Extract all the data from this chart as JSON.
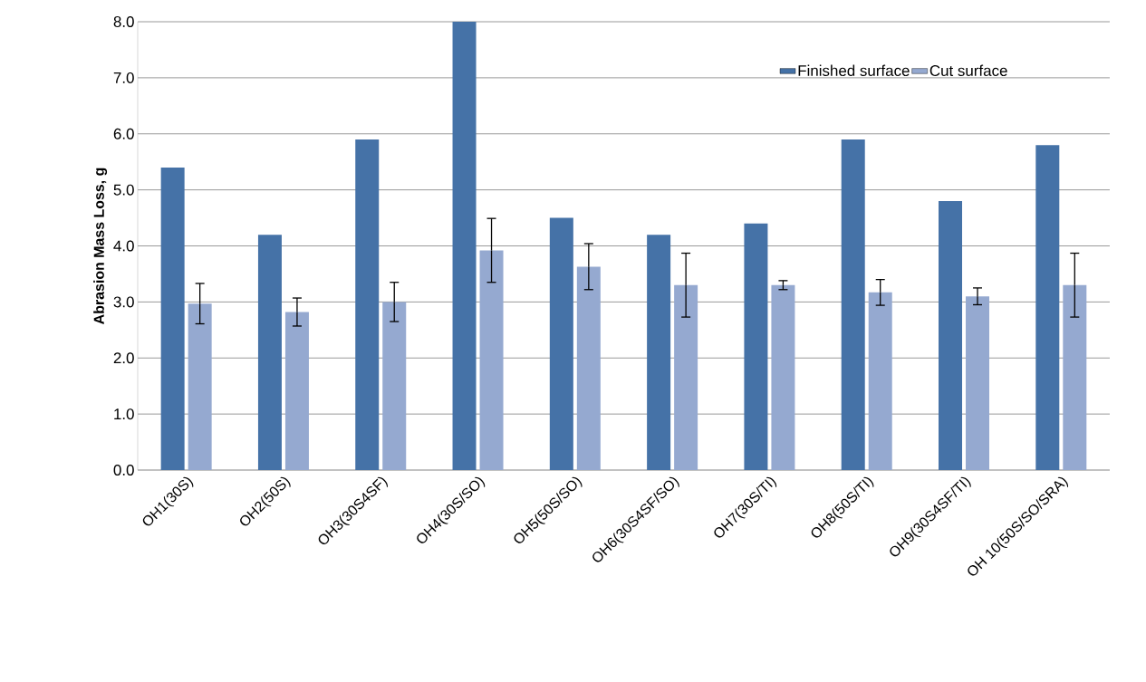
{
  "chart_data": {
    "type": "bar",
    "ylabel": "Abrasion Mass Loss, g",
    "categories": [
      "OH1(30S)",
      "OH2(50S)",
      "OH3(30S4SF)",
      "OH4(30S/SO)",
      "OH5(50S/SO)",
      "OH6(30S4SF/SO)",
      "OH7(30S/TI)",
      "OH8(50S/TI)",
      "OH9(30S4SF/TI)",
      "OH 10(50S/SO/SRA)"
    ],
    "series": [
      {
        "name": "Finished surface",
        "color": "#4572a7",
        "values": [
          5.4,
          4.2,
          5.9,
          8.0,
          4.5,
          4.2,
          4.4,
          5.9,
          4.8,
          5.8
        ]
      },
      {
        "name": "Cut surface",
        "color": "#95a9d0",
        "values": [
          2.97,
          2.82,
          3.0,
          3.92,
          3.63,
          3.3,
          3.3,
          3.17,
          3.1,
          3.3
        ],
        "errors": [
          0.36,
          0.25,
          0.35,
          0.57,
          0.41,
          0.57,
          0.08,
          0.23,
          0.15,
          0.57
        ]
      }
    ],
    "ylim": [
      0,
      8
    ],
    "yticks": [
      {
        "value": 0,
        "label": "0.0"
      },
      {
        "value": 1,
        "label": "1.0"
      },
      {
        "value": 2,
        "label": "2.0"
      },
      {
        "value": 3,
        "label": "3.0"
      },
      {
        "value": 4,
        "label": "4.0"
      },
      {
        "value": 5,
        "label": "5.0"
      },
      {
        "value": 6,
        "label": "6.0"
      },
      {
        "value": 7,
        "label": "7.0"
      },
      {
        "value": 8,
        "label": "8.0"
      }
    ],
    "grid": "y",
    "legend": "top right"
  }
}
